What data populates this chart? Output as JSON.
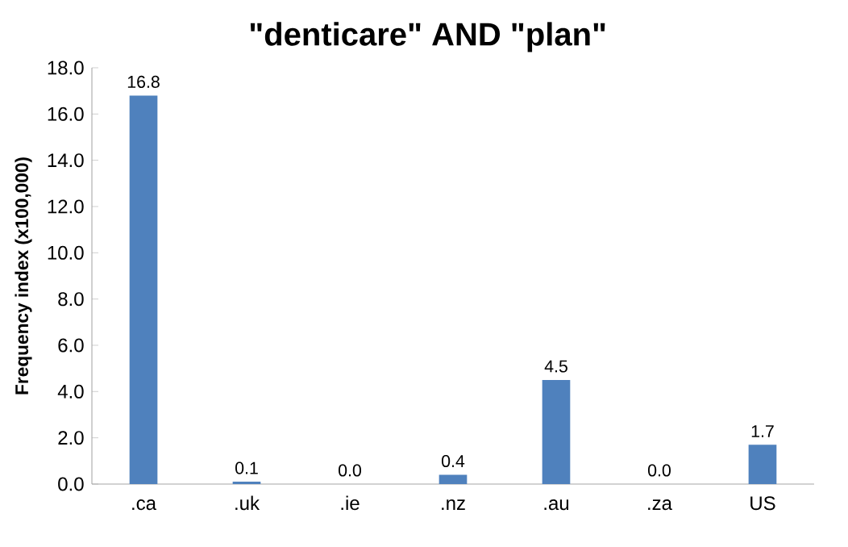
{
  "chart_data": {
    "type": "bar",
    "title": "\"denticare\" AND \"plan\"",
    "ylabel": "Frequency index (x100,000)",
    "categories": [
      ".ca",
      ".uk",
      ".ie",
      ".nz",
      ".au",
      ".za",
      "US"
    ],
    "values": [
      16.8,
      0.1,
      0.0,
      0.4,
      4.5,
      0.0,
      1.7
    ],
    "value_labels": [
      "16.8",
      "0.1",
      "0.0",
      "0.4",
      "4.5",
      "0.0",
      "1.7"
    ],
    "color": "#4f81bd",
    "ylim": [
      0,
      18
    ],
    "yticks": [
      {
        "value": 0,
        "label": "0.0"
      },
      {
        "value": 2,
        "label": "2.0"
      },
      {
        "value": 4,
        "label": "4.0"
      },
      {
        "value": 6,
        "label": "6.0"
      },
      {
        "value": 8,
        "label": "8.0"
      },
      {
        "value": 10,
        "label": "10.0"
      },
      {
        "value": 12,
        "label": "12.0"
      },
      {
        "value": 14,
        "label": "14.0"
      },
      {
        "value": 16,
        "label": "16.0"
      },
      {
        "value": 18,
        "label": "18.0"
      }
    ],
    "grid": false
  }
}
